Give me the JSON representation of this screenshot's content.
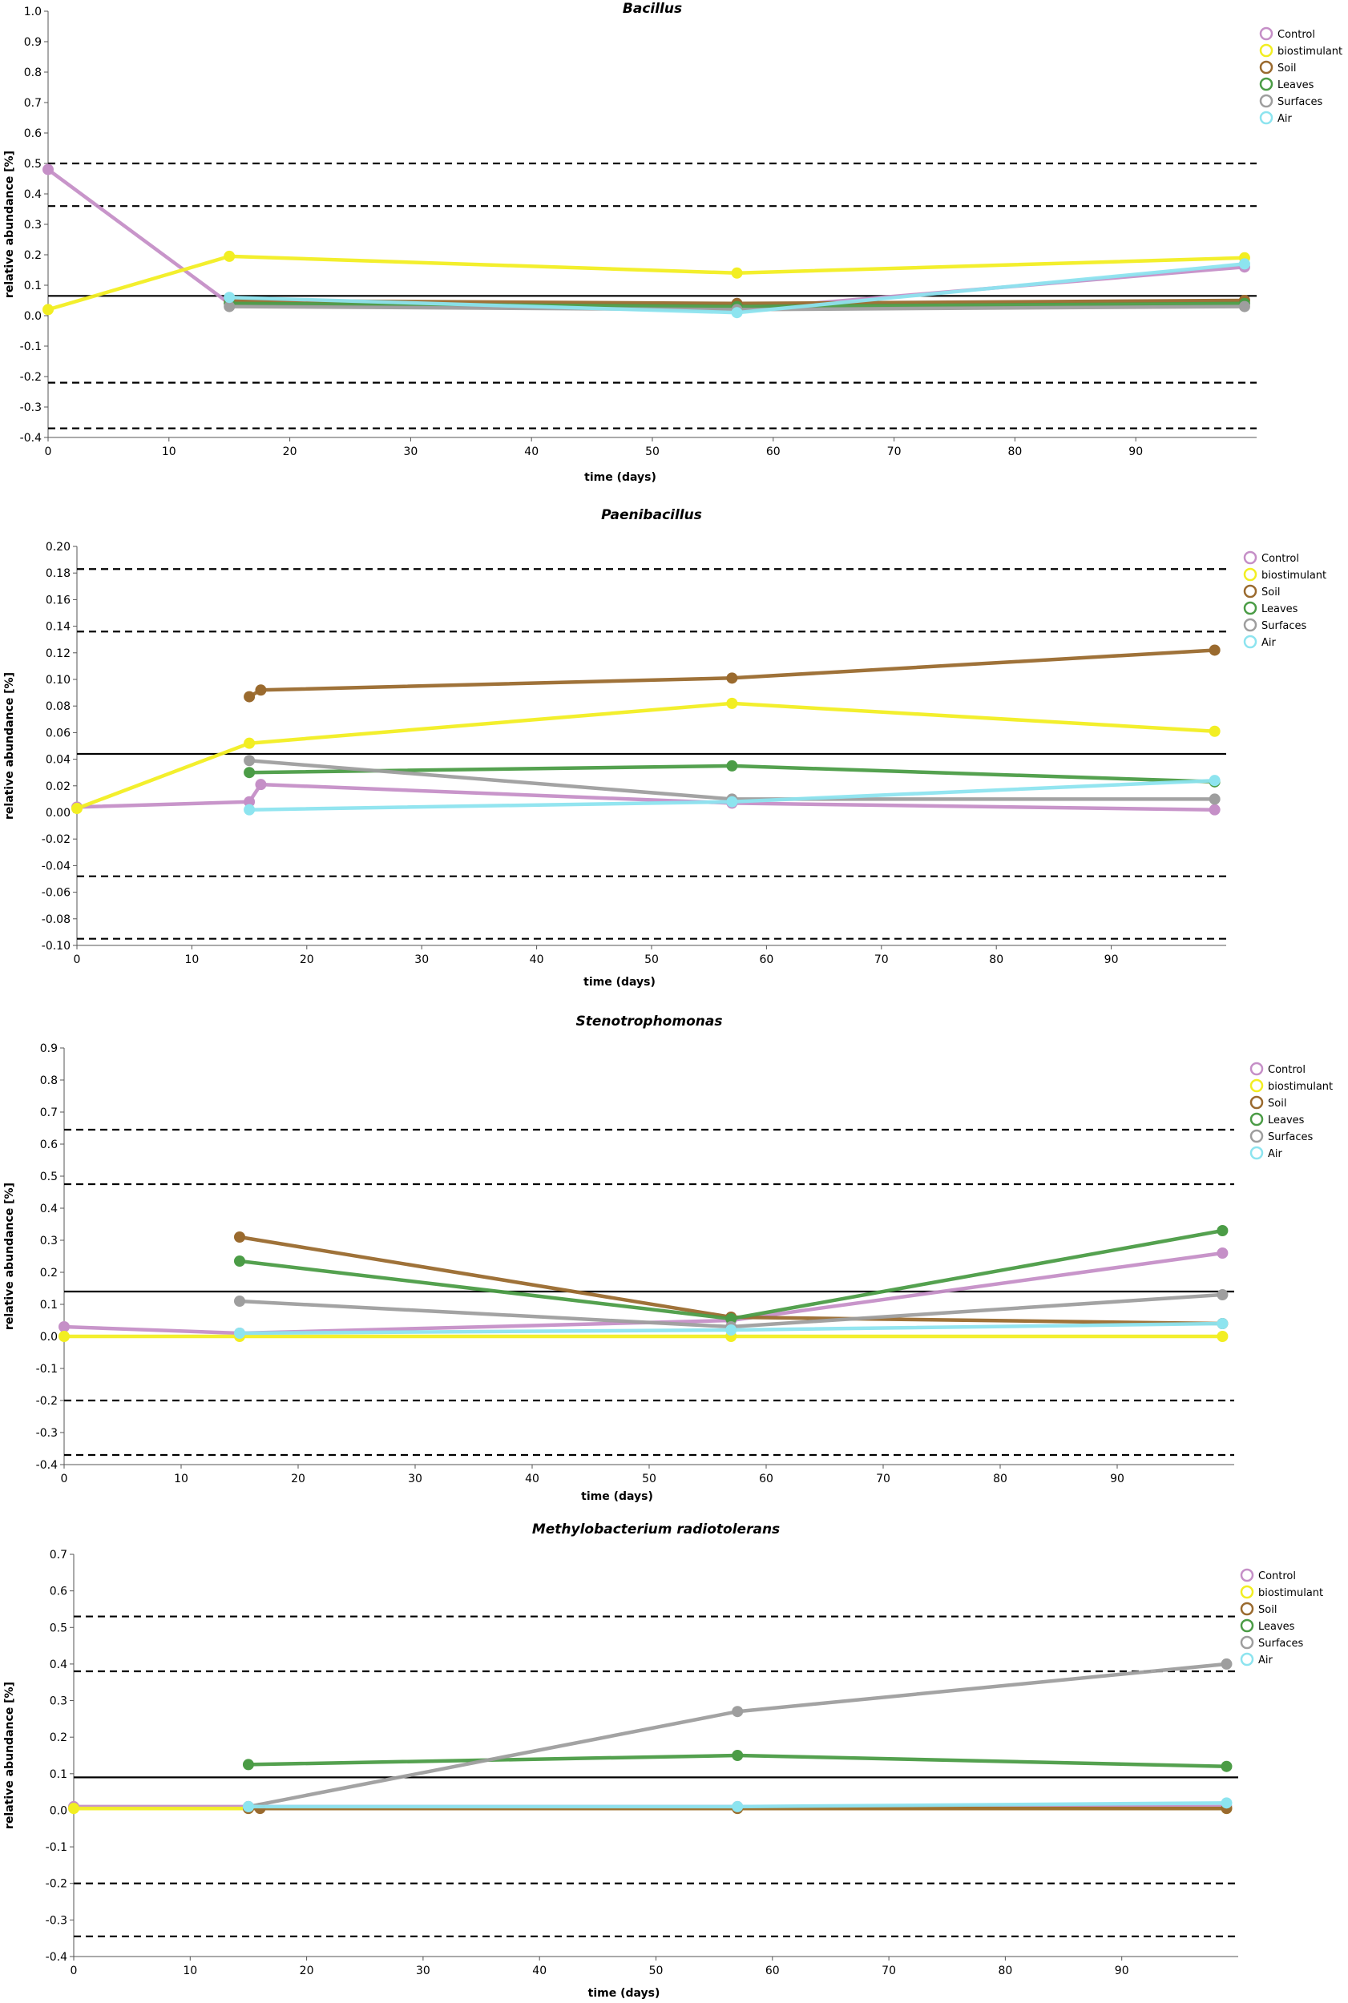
{
  "legend_labels": [
    "Control",
    "biostimulant",
    "Soil",
    "Leaves",
    "Surfaces",
    "Air"
  ],
  "colors": {
    "Control": "#c58fc7",
    "biostimulant": "#f2ee22",
    "Soil": "#9a6a2e",
    "Leaves": "#4b9c46",
    "Surfaces": "#9e9e9e",
    "Air": "#8de4ef",
    "reference_line": "#000000"
  },
  "chart_data": [
    {
      "type": "line",
      "title": "Bacillus",
      "xlabel": "time (days)",
      "ylabel": "relative abundance [%]",
      "xlim": [
        0,
        100
      ],
      "ylim": [
        -0.4,
        1.0
      ],
      "xticks": [
        "0",
        "10",
        "20",
        "30",
        "40",
        "50",
        "60",
        "70",
        "80",
        "90"
      ],
      "yticks": [
        "-0.4",
        "-0.3",
        "-0.2",
        "-0.1",
        "0.0",
        "0.1",
        "0.2",
        "0.3",
        "0.4",
        "0.5",
        "0.6",
        "0.7",
        "0.8",
        "0.9",
        "1.0"
      ],
      "mean_line": 0.065,
      "dashed_lines": [
        0.5,
        0.36,
        -0.22,
        -0.37
      ],
      "series": [
        {
          "name": "Control",
          "x": [
            0,
            15,
            57,
            99
          ],
          "y": [
            0.48,
            0.04,
            0.02,
            0.16
          ]
        },
        {
          "name": "biostimulant",
          "x": [
            0,
            15,
            57,
            99
          ],
          "y": [
            0.02,
            0.195,
            0.14,
            0.19
          ]
        },
        {
          "name": "Soil",
          "x": [
            15,
            57,
            99
          ],
          "y": [
            0.05,
            0.04,
            0.05
          ]
        },
        {
          "name": "Leaves",
          "x": [
            15,
            57,
            99
          ],
          "y": [
            0.04,
            0.03,
            0.04
          ]
        },
        {
          "name": "Surfaces",
          "x": [
            15,
            57,
            99
          ],
          "y": [
            0.03,
            0.02,
            0.03
          ]
        },
        {
          "name": "Air",
          "x": [
            15,
            57,
            99
          ],
          "y": [
            0.06,
            0.01,
            0.17
          ]
        }
      ]
    },
    {
      "type": "line",
      "title": "Paenibacillus",
      "xlabel": "time (days)",
      "ylabel": "relative abundance [%]",
      "xlim": [
        0,
        100
      ],
      "ylim": [
        -0.1,
        0.2
      ],
      "xticks": [
        "0",
        "10",
        "20",
        "30",
        "40",
        "50",
        "60",
        "70",
        "80",
        "90"
      ],
      "yticks": [
        "-0.10",
        "-0.08",
        "-0.06",
        "-0.04",
        "-0.02",
        "0.00",
        "0.02",
        "0.04",
        "0.06",
        "0.08",
        "0.10",
        "0.12",
        "0.14",
        "0.16",
        "0.18",
        "0.20"
      ],
      "mean_line": 0.044,
      "dashed_lines": [
        0.183,
        0.136,
        -0.048,
        -0.095
      ],
      "series": [
        {
          "name": "Control",
          "x": [
            0,
            15,
            16,
            57,
            99
          ],
          "y": [
            0.004,
            0.008,
            0.021,
            0.007,
            0.002
          ]
        },
        {
          "name": "biostimulant",
          "x": [
            0,
            15,
            57,
            99
          ],
          "y": [
            0.003,
            0.052,
            0.082,
            0.061
          ]
        },
        {
          "name": "Soil",
          "x": [
            15,
            16,
            57,
            99
          ],
          "y": [
            0.087,
            0.092,
            0.101,
            0.122
          ]
        },
        {
          "name": "Leaves",
          "x": [
            15,
            57,
            99
          ],
          "y": [
            0.03,
            0.035,
            0.023
          ]
        },
        {
          "name": "Surfaces",
          "x": [
            15,
            57,
            99
          ],
          "y": [
            0.039,
            0.01,
            0.01
          ]
        },
        {
          "name": "Air",
          "x": [
            15,
            57,
            99
          ],
          "y": [
            0.002,
            0.008,
            0.024
          ]
        }
      ]
    },
    {
      "type": "line",
      "title": "Stenotrophomonas",
      "xlabel": "time (days)",
      "ylabel": "relative abundance [%]",
      "xlim": [
        0,
        100
      ],
      "ylim": [
        -0.4,
        0.9
      ],
      "xticks": [
        "0",
        "10",
        "20",
        "30",
        "40",
        "50",
        "60",
        "70",
        "80",
        "90"
      ],
      "yticks": [
        "-0.4",
        "-0.3",
        "-0.2",
        "-0.1",
        "0.0",
        "0.1",
        "0.2",
        "0.3",
        "0.4",
        "0.5",
        "0.6",
        "0.7",
        "0.8",
        "0.9"
      ],
      "mean_line": 0.14,
      "dashed_lines": [
        0.645,
        0.475,
        -0.2,
        -0.37
      ],
      "series": [
        {
          "name": "Control",
          "x": [
            0,
            15,
            57,
            99
          ],
          "y": [
            0.03,
            0.01,
            0.05,
            0.26
          ]
        },
        {
          "name": "biostimulant",
          "x": [
            0,
            15,
            57,
            99
          ],
          "y": [
            0.0,
            0.0,
            0.0,
            0.0
          ]
        },
        {
          "name": "Soil",
          "x": [
            15,
            57,
            99
          ],
          "y": [
            0.31,
            0.06,
            0.04
          ]
        },
        {
          "name": "Leaves",
          "x": [
            15,
            57,
            99
          ],
          "y": [
            0.235,
            0.055,
            0.33
          ]
        },
        {
          "name": "Surfaces",
          "x": [
            15,
            57,
            99
          ],
          "y": [
            0.11,
            0.03,
            0.13
          ]
        },
        {
          "name": "Air",
          "x": [
            15,
            57,
            99
          ],
          "y": [
            0.01,
            0.02,
            0.04
          ]
        }
      ]
    },
    {
      "type": "line",
      "title": "Methylobacterium radiotolerans",
      "xlabel": "time (days)",
      "ylabel": "relative abundance [%]",
      "xlim": [
        0,
        100
      ],
      "ylim": [
        -0.4,
        0.7
      ],
      "xticks": [
        "0",
        "10",
        "20",
        "30",
        "40",
        "50",
        "60",
        "70",
        "80",
        "90"
      ],
      "yticks": [
        "-0.4",
        "-0.3",
        "-0.2",
        "-0.1",
        "0.0",
        "0.1",
        "0.2",
        "0.3",
        "0.4",
        "0.5",
        "0.6",
        "0.7"
      ],
      "mean_line": 0.09,
      "dashed_lines": [
        0.53,
        0.38,
        -0.2,
        -0.345
      ],
      "series": [
        {
          "name": "Control",
          "x": [
            0,
            15,
            57,
            99
          ],
          "y": [
            0.01,
            0.01,
            0.01,
            0.01
          ]
        },
        {
          "name": "biostimulant",
          "x": [
            0,
            15,
            57,
            99
          ],
          "y": [
            0.005,
            0.005,
            0.005,
            0.005
          ]
        },
        {
          "name": "Soil",
          "x": [
            15,
            16,
            57,
            99
          ],
          "y": [
            0.005,
            0.005,
            0.005,
            0.005
          ]
        },
        {
          "name": "Leaves",
          "x": [
            15,
            57,
            99
          ],
          "y": [
            0.125,
            0.15,
            0.12
          ]
        },
        {
          "name": "Surfaces",
          "x": [
            15,
            57,
            99
          ],
          "y": [
            0.01,
            0.27,
            0.4
          ]
        },
        {
          "name": "Air",
          "x": [
            15,
            57,
            99
          ],
          "y": [
            0.01,
            0.01,
            0.02
          ]
        }
      ]
    }
  ]
}
